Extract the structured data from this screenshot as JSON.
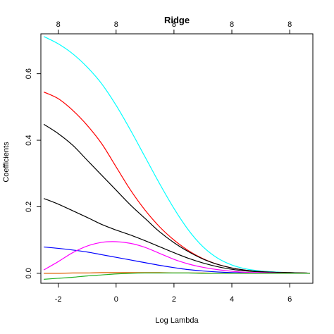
{
  "chart_data": {
    "type": "line",
    "title": "Ridge",
    "xlabel": "Log Lambda",
    "ylabel": "Coefficients",
    "xlim": [
      -2.6,
      6.8
    ],
    "ylim": [
      -0.03,
      0.72
    ],
    "x_ticks": [
      -2,
      0,
      2,
      4,
      6
    ],
    "x_tick_labels": [
      "-2",
      "0",
      "2",
      "4",
      "6"
    ],
    "y_ticks": [
      0.0,
      0.2,
      0.4,
      0.6
    ],
    "y_tick_labels": [
      "0.0",
      "0.2",
      "0.4",
      "0.6"
    ],
    "top_ticks": [
      -2,
      0,
      2,
      4,
      6
    ],
    "top_tick_labels": [
      "8",
      "8",
      "8",
      "8",
      "8"
    ],
    "grid": false,
    "x": [
      -2.5,
      -2.0,
      -1.5,
      -1.0,
      -0.5,
      0.0,
      0.5,
      1.0,
      1.5,
      2.0,
      2.5,
      3.0,
      3.5,
      4.0,
      4.5,
      5.0,
      5.5,
      6.0,
      6.5,
      6.7
    ],
    "series": [
      {
        "color": "#00ffff",
        "values": [
          0.712,
          0.69,
          0.66,
          0.62,
          0.57,
          0.505,
          0.43,
          0.35,
          0.27,
          0.195,
          0.13,
          0.08,
          0.046,
          0.025,
          0.013,
          0.007,
          0.004,
          0.002,
          0.001,
          0.0
        ]
      },
      {
        "color": "#ff0000",
        "values": [
          0.545,
          0.525,
          0.49,
          0.445,
          0.39,
          0.32,
          0.25,
          0.19,
          0.14,
          0.1,
          0.068,
          0.044,
          0.027,
          0.016,
          0.009,
          0.005,
          0.003,
          0.002,
          0.001,
          0.0
        ]
      },
      {
        "color": "#000000",
        "values": [
          0.448,
          0.42,
          0.385,
          0.34,
          0.295,
          0.25,
          0.205,
          0.165,
          0.125,
          0.092,
          0.065,
          0.043,
          0.027,
          0.016,
          0.009,
          0.005,
          0.003,
          0.002,
          0.001,
          0.0
        ]
      },
      {
        "color": "#000000",
        "values": [
          0.225,
          0.208,
          0.188,
          0.168,
          0.147,
          0.13,
          0.115,
          0.098,
          0.08,
          0.062,
          0.045,
          0.031,
          0.02,
          0.012,
          0.007,
          0.004,
          0.002,
          0.001,
          0.0,
          0.0
        ]
      },
      {
        "color": "#0000ff",
        "values": [
          0.079,
          0.075,
          0.07,
          0.064,
          0.056,
          0.048,
          0.04,
          0.032,
          0.024,
          0.017,
          0.011,
          0.007,
          0.004,
          0.002,
          0.001,
          0.001,
          0.0,
          0.0,
          0.0,
          0.0
        ]
      },
      {
        "color": "#ff00ff",
        "values": [
          0.01,
          0.035,
          0.062,
          0.082,
          0.093,
          0.095,
          0.09,
          0.078,
          0.06,
          0.042,
          0.028,
          0.018,
          0.011,
          0.006,
          0.003,
          0.002,
          0.001,
          0.0,
          0.0,
          0.0
        ]
      },
      {
        "color": "#df5f00",
        "values": [
          0.0,
          0.0,
          0.001,
          0.001,
          0.002,
          0.002,
          0.002,
          0.002,
          0.002,
          0.001,
          0.001,
          0.001,
          0.0,
          0.0,
          0.0,
          0.0,
          0.0,
          0.0,
          0.0,
          0.0
        ]
      },
      {
        "color": "#22b022",
        "values": [
          -0.018,
          -0.015,
          -0.012,
          -0.008,
          -0.005,
          -0.002,
          0.0,
          0.001,
          0.001,
          0.001,
          0.001,
          0.0,
          0.0,
          0.0,
          0.0,
          0.0,
          0.0,
          0.0,
          0.0,
          0.0
        ]
      }
    ]
  }
}
